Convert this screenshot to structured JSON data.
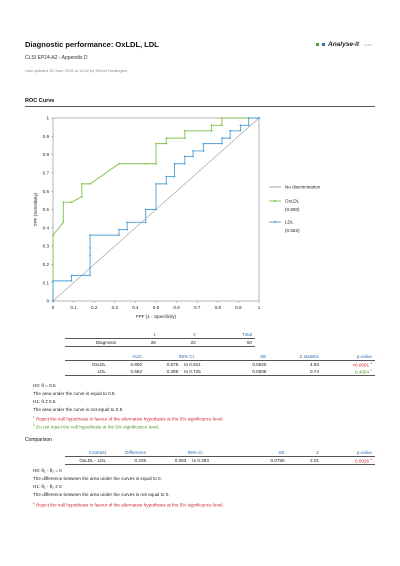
{
  "header": {
    "title": "Diagnostic performance: OxLDL, LDL",
    "subtitle": "CLSI EP24-A2 - Appendix D",
    "updated": "Last updated 25 June 2015 at 14:02 by Simon Huntington",
    "logo_text": "Analyse-it",
    "logo_version": "v4.50"
  },
  "roc_section": {
    "title": "ROC Curve"
  },
  "chart_data": {
    "type": "line",
    "title": "",
    "xlabel": "FPF (1 - Specificity)",
    "ylabel": "TPF (Sensitivity)",
    "xlim": [
      0,
      1
    ],
    "ylim": [
      0,
      1
    ],
    "xticks": [
      "0",
      "0.1",
      "0.2",
      "0.3",
      "0.4",
      "0.5",
      "0.6",
      "0.7",
      "0.8",
      "0.9",
      "1"
    ],
    "yticks": [
      "0",
      "0.1",
      "0.2",
      "0.3",
      "0.4",
      "0.5",
      "0.6",
      "0.7",
      "0.8",
      "0.9",
      "1"
    ],
    "grid": false,
    "legend_position": "right",
    "legend": [
      {
        "label": "No discrimination",
        "color": "#9a9a9a"
      },
      {
        "label": "OxLDL",
        "sublabel": "(0.800)",
        "color": "#7cc24a"
      },
      {
        "label": "LDL",
        "sublabel": "(0.562)",
        "color": "#4d9fd6"
      }
    ],
    "series": [
      {
        "name": "OxLDL",
        "color": "#7cc24a",
        "x": [
          0,
          0,
          0.05,
          0.05,
          0.09,
          0.14,
          0.14,
          0.18,
          0.32,
          0.45,
          0.5,
          0.5,
          0.55,
          0.55,
          0.64,
          0.64,
          0.77,
          0.77,
          0.82,
          0.82,
          0.95,
          0.95,
          1
        ],
        "y": [
          0,
          0.36,
          0.43,
          0.54,
          0.54,
          0.57,
          0.64,
          0.64,
          0.75,
          0.75,
          0.75,
          0.86,
          0.86,
          0.89,
          0.89,
          0.93,
          0.93,
          0.96,
          0.96,
          1,
          1,
          1,
          1
        ]
      },
      {
        "name": "LDL",
        "color": "#4d9fd6",
        "x": [
          0,
          0,
          0.09,
          0.09,
          0.18,
          0.18,
          0.18,
          0.18,
          0.18,
          0.32,
          0.32,
          0.36,
          0.36,
          0.45,
          0.45,
          0.5,
          0.5,
          0.55,
          0.55,
          0.59,
          0.59,
          0.64,
          0.64,
          0.68,
          0.68,
          0.73,
          0.73,
          0.82,
          0.82,
          0.86,
          0.86,
          0.91,
          0.91,
          0.95,
          0.95,
          1,
          1
        ],
        "y": [
          0,
          0.11,
          0.11,
          0.14,
          0.14,
          0.18,
          0.25,
          0.29,
          0.36,
          0.36,
          0.39,
          0.39,
          0.43,
          0.43,
          0.5,
          0.5,
          0.64,
          0.64,
          0.68,
          0.68,
          0.75,
          0.75,
          0.79,
          0.79,
          0.82,
          0.82,
          0.86,
          0.86,
          0.89,
          0.89,
          0.93,
          0.93,
          0.96,
          0.96,
          1,
          1,
          1
        ]
      }
    ]
  },
  "diagnosis_table": {
    "columns": [
      "1",
      "0",
      "Total"
    ],
    "row_label": "Diagnosis",
    "values": [
      "28",
      "22",
      "50"
    ]
  },
  "auc_table": {
    "columns": [
      "AUC",
      "95% CI",
      "SE",
      "Z statistic",
      "p-value"
    ],
    "rows": [
      {
        "label": "OxLDL",
        "auc": "0.800",
        "ci_low": "0.678",
        "ci_high": "to 0.921",
        "se": "0.0620",
        "z": "4.83",
        "p": "<0.0001",
        "mark": "1"
      },
      {
        "label": "LDL",
        "auc": "0.562",
        "ci_low": "0.398",
        "ci_high": "to 0.725",
        "se": "0.0836",
        "z": "0.74",
        "p": "0.4604",
        "mark": "2"
      }
    ]
  },
  "auc_notes": {
    "h0": "H0: θ = 0.5",
    "h0_desc": "The area under the curve is equal to 0.5.",
    "h1": "H1: θ ≠ 0.5",
    "h1_desc": "The area under the curve is not equal to 0.5.",
    "foot1_mark": "1",
    "foot1": "Reject the null hypothesis in favour of the alternative hypothesis at the 5% significance level.",
    "foot2_mark": "2",
    "foot2": "Do not reject the null hypothesis at the 5% significance level."
  },
  "comparison_section": {
    "title": "Comparison"
  },
  "comparison_table": {
    "columns": [
      "Contrast",
      "Difference",
      "95% CI",
      "SE",
      "Z",
      "p-value"
    ],
    "row": {
      "contrast": "OxLDL - LDL",
      "difference": "0.238",
      "ci_low": "0.083",
      "ci_high": "to 0.393",
      "se": "0.0790",
      "z": "3.01",
      "p": "0.0026",
      "mark": "1"
    }
  },
  "comparison_notes": {
    "h0": "H0: θ₁ - θ₂ = 0",
    "h0_desc": "The difference between the area under the curves is equal to 0.",
    "h1": "H1: θ₁ - θ₂ ≠ 0",
    "h1_desc": "The difference between the area under the curves is not equal to 0.",
    "foot1_mark": "1",
    "foot1": "Reject the null hypothesis in favour of the alternative hypothesis at the 5% significance level."
  }
}
